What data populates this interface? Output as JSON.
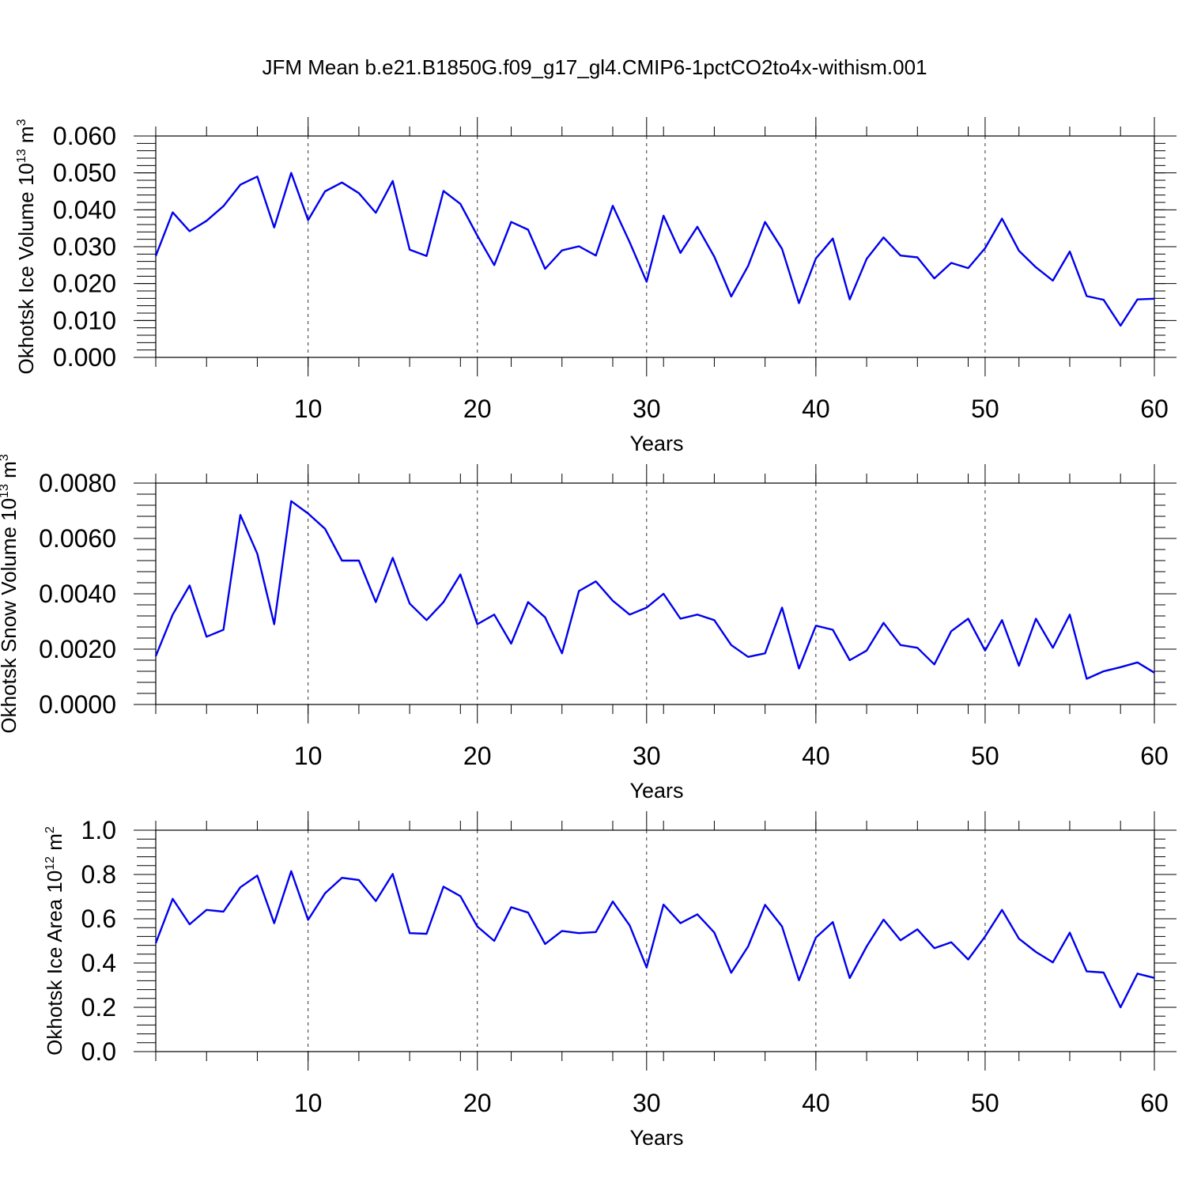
{
  "title": "JFM Mean b.e21.B1850G.f09_g17_gl4.CMIP6-1pctCO2to4x-withism.001",
  "line_color": "#0000ee",
  "chart_data": [
    {
      "type": "line",
      "xlabel": "Years",
      "ylabel": "Okhotsk Ice Volume 10",
      "ylabel_exp": "13",
      "ylabel_unit": " m",
      "ylabel_unit_exp": "3",
      "xlim": [
        1,
        60
      ],
      "ylim": [
        0,
        0.06
      ],
      "xticks": [
        10,
        20,
        30,
        40,
        50,
        60
      ],
      "yticks": [
        "0.000",
        "0.010",
        "0.020",
        "0.030",
        "0.040",
        "0.050",
        "0.060"
      ],
      "grid": "vertical dashed at major x ticks",
      "x": [
        1,
        2,
        3,
        4,
        5,
        6,
        7,
        8,
        9,
        10,
        11,
        12,
        13,
        14,
        15,
        16,
        17,
        18,
        19,
        20,
        21,
        22,
        23,
        24,
        25,
        26,
        27,
        28,
        29,
        30,
        31,
        32,
        33,
        34,
        35,
        36,
        37,
        38,
        39,
        40,
        41,
        42,
        43,
        44,
        45,
        46,
        47,
        48,
        49,
        50,
        51,
        52,
        53,
        54,
        55,
        56,
        57,
        58,
        59,
        60
      ],
      "y": [
        0.0275,
        0.0393,
        0.0342,
        0.037,
        0.041,
        0.0468,
        0.049,
        0.0352,
        0.05,
        0.0372,
        0.045,
        0.0474,
        0.0445,
        0.0392,
        0.0478,
        0.0292,
        0.0275,
        0.0451,
        0.0416,
        0.033,
        0.025,
        0.0367,
        0.0346,
        0.024,
        0.029,
        0.0301,
        0.0276,
        0.0411,
        0.0312,
        0.0205,
        0.0384,
        0.0283,
        0.0354,
        0.0273,
        0.0165,
        0.0248,
        0.0367,
        0.0294,
        0.0147,
        0.0268,
        0.0322,
        0.0157,
        0.0267,
        0.0325,
        0.0276,
        0.0271,
        0.0214,
        0.0256,
        0.0242,
        0.0296,
        0.0376,
        0.0289,
        0.0244,
        0.0208,
        0.0287,
        0.0166,
        0.0156,
        0.0086,
        0.0157,
        0.0159
      ]
    },
    {
      "type": "line",
      "xlabel": "Years",
      "ylabel": "Okhotsk Snow Volume 10",
      "ylabel_exp": "13",
      "ylabel_unit": " m",
      "ylabel_unit_exp": "3",
      "xlim": [
        1,
        60
      ],
      "ylim": [
        0,
        0.008
      ],
      "xticks": [
        10,
        20,
        30,
        40,
        50,
        60
      ],
      "yticks": [
        "0.0000",
        "0.0020",
        "0.0040",
        "0.0060",
        "0.0080"
      ],
      "grid": "vertical dashed at major x ticks",
      "x": [
        1,
        2,
        3,
        4,
        5,
        6,
        7,
        8,
        9,
        10,
        11,
        12,
        13,
        14,
        15,
        16,
        17,
        18,
        19,
        20,
        21,
        22,
        23,
        24,
        25,
        26,
        27,
        28,
        29,
        30,
        31,
        32,
        33,
        34,
        35,
        36,
        37,
        38,
        39,
        40,
        41,
        42,
        43,
        44,
        45,
        46,
        47,
        48,
        49,
        50,
        51,
        52,
        53,
        54,
        55,
        56,
        57,
        58,
        59,
        60
      ],
      "y": [
        0.00175,
        0.00325,
        0.0043,
        0.00245,
        0.0027,
        0.00685,
        0.00545,
        0.0029,
        0.00735,
        0.0069,
        0.00635,
        0.0052,
        0.0052,
        0.0037,
        0.0053,
        0.00365,
        0.00305,
        0.0037,
        0.0047,
        0.0029,
        0.00325,
        0.0022,
        0.0037,
        0.00315,
        0.00185,
        0.0041,
        0.00445,
        0.00375,
        0.00325,
        0.0035,
        0.004,
        0.0031,
        0.00325,
        0.00305,
        0.00215,
        0.00172,
        0.00185,
        0.0035,
        0.0013,
        0.00285,
        0.0027,
        0.0016,
        0.00195,
        0.00295,
        0.00215,
        0.00205,
        0.00145,
        0.00265,
        0.0031,
        0.00195,
        0.00305,
        0.0014,
        0.0031,
        0.00205,
        0.00325,
        0.00093,
        0.0012,
        0.00135,
        0.00152,
        0.00115
      ]
    },
    {
      "type": "line",
      "xlabel": "Years",
      "ylabel": "Okhotsk Ice Area 10",
      "ylabel_exp": "12",
      "ylabel_unit": " m",
      "ylabel_unit_exp": "2",
      "xlim": [
        1,
        60
      ],
      "ylim": [
        0,
        1.0
      ],
      "xticks": [
        10,
        20,
        30,
        40,
        50,
        60
      ],
      "yticks": [
        "0.0",
        "0.2",
        "0.4",
        "0.6",
        "0.8",
        "1.0"
      ],
      "grid": "vertical dashed at major x ticks",
      "x": [
        1,
        2,
        3,
        4,
        5,
        6,
        7,
        8,
        9,
        10,
        11,
        12,
        13,
        14,
        15,
        16,
        17,
        18,
        19,
        20,
        21,
        22,
        23,
        24,
        25,
        26,
        27,
        28,
        29,
        30,
        31,
        32,
        33,
        34,
        35,
        36,
        37,
        38,
        39,
        40,
        41,
        42,
        43,
        44,
        45,
        46,
        47,
        48,
        49,
        50,
        51,
        52,
        53,
        54,
        55,
        56,
        57,
        58,
        59,
        60
      ],
      "y": [
        0.49,
        0.69,
        0.575,
        0.64,
        0.632,
        0.742,
        0.795,
        0.58,
        0.815,
        0.595,
        0.715,
        0.785,
        0.775,
        0.68,
        0.802,
        0.535,
        0.532,
        0.745,
        0.702,
        0.565,
        0.5,
        0.652,
        0.628,
        0.486,
        0.545,
        0.535,
        0.54,
        0.678,
        0.57,
        0.38,
        0.664,
        0.58,
        0.62,
        0.538,
        0.356,
        0.475,
        0.663,
        0.565,
        0.322,
        0.515,
        0.585,
        0.332,
        0.475,
        0.596,
        0.503,
        0.552,
        0.467,
        0.494,
        0.416,
        0.52,
        0.64,
        0.51,
        0.45,
        0.403,
        0.537,
        0.362,
        0.357,
        0.2,
        0.352,
        0.333
      ]
    }
  ]
}
